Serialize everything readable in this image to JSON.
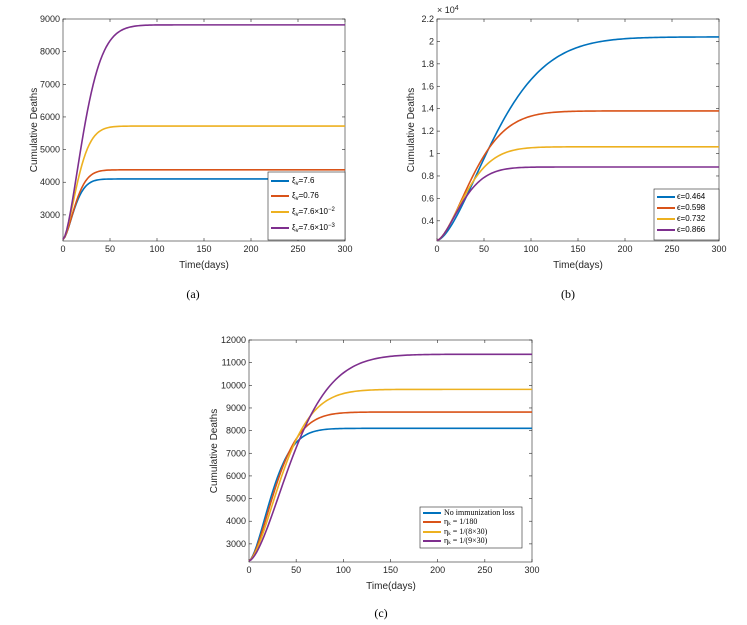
{
  "chart_data": [
    {
      "id": "a",
      "type": "line",
      "caption": "(a)",
      "xlabel": "Time(days)",
      "ylabel": "Cumulative Deaths",
      "xlim": [
        0,
        300
      ],
      "ylim": [
        2200,
        9000
      ],
      "xticks": [
        "0",
        "50",
        "100",
        "150",
        "200",
        "250",
        "300"
      ],
      "yticks": [
        "3000",
        "4000",
        "5000",
        "6000",
        "7000",
        "8000",
        "9000"
      ],
      "legend_position": "bottom-right",
      "series": [
        {
          "name": "ξ_v=7.6",
          "color": "#0072BD",
          "start": 2250,
          "plateau": 4100,
          "tau": 11
        },
        {
          "name": "ξ_v=0.76",
          "color": "#D95319",
          "start": 2250,
          "plateau": 4380,
          "tau": 12
        },
        {
          "name": "ξ_v=7.6×10^-2",
          "color": "#EDB120",
          "start": 2250,
          "plateau": 5720,
          "tau": 14
        },
        {
          "name": "ξ_v=7.6×10^-3",
          "color": "#7E2F8E",
          "start": 2250,
          "plateau": 8820,
          "tau": 20
        }
      ]
    },
    {
      "id": "b",
      "type": "line",
      "caption": "(b)",
      "xlabel": "Time(days)",
      "ylabel": "Cumulative Deaths",
      "multiplier": "× 10^4",
      "xlim": [
        0,
        300
      ],
      "ylim": [
        0.22,
        2.2
      ],
      "xticks": [
        "0",
        "50",
        "100",
        "150",
        "200",
        "250",
        "300"
      ],
      "yticks": [
        "0.4",
        "0.6",
        "0.8",
        "1",
        "1.2",
        "1.4",
        "1.6",
        "1.8",
        "2",
        "2.2"
      ],
      "legend_position": "bottom-right",
      "series": [
        {
          "name": "ϵ=0.464",
          "color": "#0072BD",
          "start": 0.225,
          "plateau": 2.04,
          "tau": 55
        },
        {
          "name": "ϵ=0.598",
          "color": "#D95319",
          "start": 0.225,
          "plateau": 1.38,
          "tau": 35
        },
        {
          "name": "ϵ=0.732",
          "color": "#EDB120",
          "start": 0.225,
          "plateau": 1.06,
          "tau": 28
        },
        {
          "name": "ϵ=0.866",
          "color": "#7E2F8E",
          "start": 0.225,
          "plateau": 0.88,
          "tau": 24
        }
      ]
    },
    {
      "id": "c",
      "type": "line",
      "caption": "(c)",
      "xlabel": "Time(days)",
      "ylabel": "Cumulative Deaths",
      "xlim": [
        0,
        300
      ],
      "ylim": [
        2200,
        12000
      ],
      "xticks": [
        "0",
        "50",
        "100",
        "150",
        "200",
        "250",
        "300"
      ],
      "yticks": [
        "3000",
        "4000",
        "5000",
        "6000",
        "7000",
        "8000",
        "9000",
        "10000",
        "11000",
        "12000"
      ],
      "legend_position": "bottom-right",
      "series": [
        {
          "name": "No immunization loss",
          "color": "#0072BD",
          "start": 2250,
          "plateau": 8100,
          "tau": 22
        },
        {
          "name": "η_k = 1/180",
          "color": "#D95319",
          "start": 2250,
          "plateau": 8820,
          "tau": 26
        },
        {
          "name": "η_k = 1/(8×30)",
          "color": "#EDB120",
          "start": 2250,
          "plateau": 9820,
          "tau": 32
        },
        {
          "name": "η_k = 1/(9×30)",
          "color": "#7E2F8E",
          "start": 2250,
          "plateau": 11370,
          "tau": 42
        }
      ]
    }
  ]
}
